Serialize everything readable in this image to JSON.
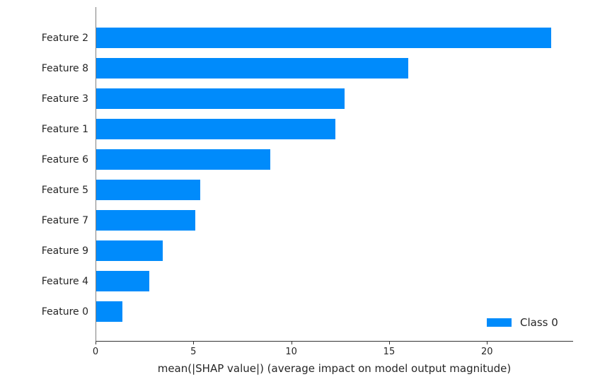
{
  "chart_data": {
    "type": "bar",
    "orientation": "horizontal",
    "categories": [
      "Feature 2",
      "Feature 8",
      "Feature 3",
      "Feature 1",
      "Feature 6",
      "Feature 5",
      "Feature 7",
      "Feature 9",
      "Feature 4",
      "Feature 0"
    ],
    "series": [
      {
        "name": "Class 0",
        "color": "#008bfb",
        "values": [
          23.25,
          15.95,
          12.7,
          12.2,
          8.9,
          5.3,
          5.05,
          3.4,
          2.7,
          1.35
        ]
      }
    ],
    "title": "",
    "xlabel": "mean(|SHAP value|) (average impact on model output magnitude)",
    "ylabel": "",
    "xlim": [
      0,
      24.4
    ],
    "x_ticks": [
      0,
      5,
      10,
      15,
      20
    ],
    "grid": false,
    "legend_position": "lower right",
    "legend_entries": [
      "Class 0"
    ]
  },
  "legend": {
    "label": "Class 0"
  },
  "axis": {
    "xlabel": "mean(|SHAP value|) (average impact on model output magnitude)"
  }
}
